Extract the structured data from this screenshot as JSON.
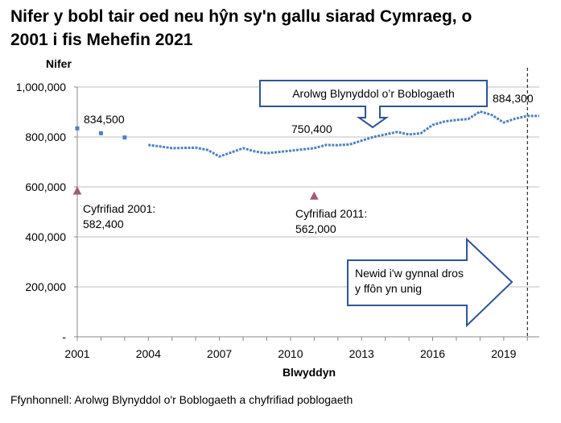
{
  "title_line1": "Nifer y bobl tair oed neu hŷn sy'n gallu siarad Cymraeg, o",
  "title_line2": "2001 i fis Mehefin 2021",
  "source": "Ffynhonnell: Arolwg Blynyddol o'r Boblogaeth a chyfrifiad poblogaeth",
  "chart_data": {
    "type": "line",
    "ylabel": "Nifer",
    "xlabel": "Blwyddyn",
    "xlim": [
      2001,
      2020.5
    ],
    "ylim": [
      0,
      1000000
    ],
    "y_tick_labels": [
      "-",
      "200,000",
      "400,000",
      "600,000",
      "800,000",
      "1,000,000"
    ],
    "y_tick_values": [
      0,
      200000,
      400000,
      600000,
      800000,
      1000000
    ],
    "x_tick_labels": [
      "2001",
      "2004",
      "2007",
      "2010",
      "2013",
      "2016",
      "2019"
    ],
    "x_tick_values": [
      2001,
      2004,
      2007,
      2010,
      2013,
      2016,
      2019
    ],
    "grid": true,
    "colors": {
      "survey": "#4f81bd",
      "census_fill": "#8064a2",
      "census_edge": "#c0504d",
      "arrow": "#2f5597"
    },
    "series": [
      {
        "marker": "square",
        "x": [
          2001.0,
          2002.0,
          2003.0
        ],
        "values": [
          834500,
          815000,
          798000
        ]
      },
      {
        "marker": "line",
        "x": [
          2004.0,
          2004.5,
          2005.0,
          2005.5,
          2006.0,
          2006.5,
          2007.0,
          2007.5,
          2008.0,
          2008.5,
          2009.0,
          2009.5,
          2010.0,
          2010.5,
          2011.0,
          2011.5,
          2012.0,
          2012.5,
          2013.0,
          2013.5,
          2014.0,
          2014.5,
          2015.0,
          2015.5,
          2016.0,
          2016.5,
          2017.0,
          2017.5,
          2018.0,
          2018.5,
          2019.0,
          2019.5,
          2020.0,
          2020.5
        ],
        "values": [
          768000,
          762000,
          755000,
          756000,
          757000,
          748000,
          722000,
          738000,
          755000,
          742000,
          735000,
          740000,
          745000,
          750400,
          755000,
          768000,
          767000,
          770000,
          785000,
          800000,
          810000,
          820000,
          810000,
          815000,
          848000,
          862000,
          868000,
          872000,
          902000,
          888000,
          858000,
          874000,
          884300,
          884300
        ]
      },
      {
        "marker": "triangle",
        "x": [
          2001.0,
          2011.0
        ],
        "values": [
          582400,
          562000
        ]
      }
    ],
    "annotations": {
      "first_value": "834,500",
      "mid_value": "750,400",
      "last_value": "884,300",
      "census_2001_line1": "Cyfrifiad 2001:",
      "census_2001_line2": "582,400",
      "census_2011_line1": "Cyfrifiad 2011:",
      "census_2011_line2": "562,000",
      "callout_aps": "Arolwg Blynyddol o’r Boblogaeth",
      "callout_phone_line1": "Newid i'w gynnal dros",
      "callout_phone_line2": "y ffôn yn unig"
    },
    "vertical_marker_x": 2020.0
  }
}
